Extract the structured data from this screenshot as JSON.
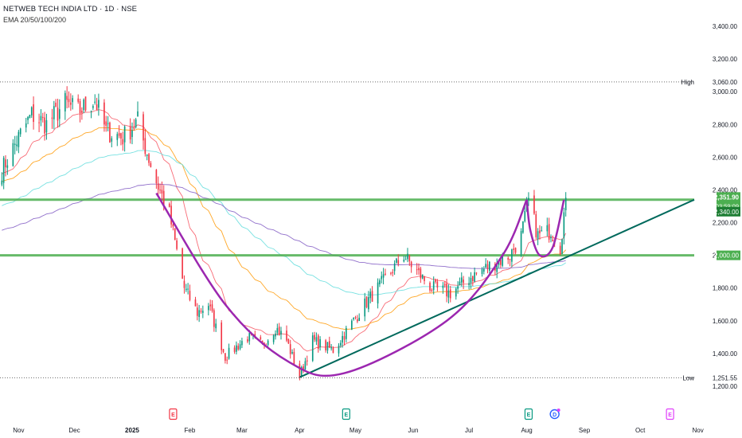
{
  "header": {
    "symbol_title": "NETWEB TECH INDIA LTD · 1D · NSE",
    "indicator_label": "EMA 20/50/100/200"
  },
  "colors": {
    "up": "#089981",
    "down": "#f23645",
    "ema20": "#f7525f",
    "ema50": "#ff9800",
    "ema100": "#5fdcdc",
    "ema200": "#7e57c2",
    "resistance_line": "#4caf50",
    "trendline": "#00695c",
    "cup_handle": "#9c27b0",
    "price_label_bg": "#4caf50"
  },
  "chart_data": {
    "type": "candlestick",
    "title": "NETWEB TECH INDIA LTD · 1D · NSE",
    "y_axis": {
      "ticks": [
        1200,
        1400,
        1600,
        1800,
        2000,
        2200,
        2400,
        2600,
        2800,
        3000,
        3200,
        3400
      ],
      "tick_labels": [
        "1,200.00",
        "1,400.00",
        "1,600.00",
        "1,800.00",
        "2,000.00",
        "2,200.00",
        "2,400.00",
        "2,600.00",
        "2,800.00",
        "3,000.00",
        "3,200.00",
        "3,400.00"
      ],
      "range": [
        1150,
        3500
      ]
    },
    "x_axis": {
      "tick_labels": [
        "Nov",
        "Dec",
        "2025",
        "Feb",
        "Mar",
        "Apr",
        "May",
        "Jun",
        "Jul",
        "Aug",
        "Sep",
        "Oct",
        "Nov"
      ],
      "range": [
        "2024-10-28",
        "2025-11-05"
      ]
    },
    "price_labels": {
      "high_label": "High",
      "high": "3,060.00",
      "low_label": "Low",
      "low": "1,251.55",
      "last": "2,351.90",
      "countdown": "03:59:09",
      "prev": "2,340.00",
      "level": "2,000.00"
    },
    "levels": [
      2340,
      2000
    ],
    "high_line": 3060,
    "low_line": 1251.55,
    "key_points": [
      {
        "date": "2024-10-29",
        "close": 2520
      },
      {
        "date": "2024-11-06",
        "close": 2700
      },
      {
        "date": "2024-11-14",
        "close": 2860
      },
      {
        "date": "2024-11-22",
        "close": 2800
      },
      {
        "date": "2024-12-02",
        "close": 2930
      },
      {
        "date": "2024-12-09",
        "close": 2880
      },
      {
        "date": "2024-12-18",
        "close": 2950
      },
      {
        "date": "2024-12-24",
        "close": 2760
      },
      {
        "date": "2025-01-02",
        "close": 2720
      },
      {
        "date": "2025-01-10",
        "close": 2820
      },
      {
        "date": "2025-01-13",
        "close": 2700
      },
      {
        "date": "2025-01-20",
        "close": 2450
      },
      {
        "date": "2025-01-27",
        "close": 2250
      },
      {
        "date": "2025-02-04",
        "close": 1800
      },
      {
        "date": "2025-02-11",
        "close": 1650
      },
      {
        "date": "2025-02-17",
        "close": 1700
      },
      {
        "date": "2025-02-26",
        "close": 1380
      },
      {
        "date": "2025-03-10",
        "close": 1500
      },
      {
        "date": "2025-03-18",
        "close": 1450
      },
      {
        "date": "2025-03-25",
        "close": 1560
      },
      {
        "date": "2025-03-31",
        "close": 1480
      },
      {
        "date": "2025-04-04",
        "close": 1350
      },
      {
        "date": "2025-04-07",
        "close": 1260
      },
      {
        "date": "2025-04-14",
        "close": 1480
      },
      {
        "date": "2025-04-25",
        "close": 1420
      },
      {
        "date": "2025-05-12",
        "close": 1700
      },
      {
        "date": "2025-05-26",
        "close": 1900
      },
      {
        "date": "2025-06-02",
        "close": 2000
      },
      {
        "date": "2025-06-09",
        "close": 1900
      },
      {
        "date": "2025-06-17",
        "close": 1800
      },
      {
        "date": "2025-06-27",
        "close": 1770
      },
      {
        "date": "2025-07-07",
        "close": 1860
      },
      {
        "date": "2025-07-17",
        "close": 1930
      },
      {
        "date": "2025-07-29",
        "close": 2000
      },
      {
        "date": "2025-08-04",
        "close": 2120
      },
      {
        "date": "2025-08-08",
        "close": 2330
      },
      {
        "date": "2025-08-13",
        "close": 2120
      },
      {
        "date": "2025-08-20",
        "close": 2150
      },
      {
        "date": "2025-08-25",
        "close": 2050
      },
      {
        "date": "2025-08-28",
        "close": 2351.9
      }
    ],
    "ema_legend": [
      "EMA 20",
      "EMA 50",
      "EMA 100",
      "EMA 200"
    ],
    "annotations": {
      "trendline": [
        {
          "date": "2025-04-07",
          "price": 1255
        },
        {
          "date": "2025-11-05",
          "price": 2340
        }
      ],
      "cup": [
        {
          "date": "2025-01-20",
          "price": 2380
        },
        {
          "date": "2025-02-26",
          "price": 1700
        },
        {
          "date": "2025-04-01",
          "price": 1350
        },
        {
          "date": "2025-05-01",
          "price": 1280
        },
        {
          "date": "2025-06-25",
          "price": 1600
        },
        {
          "date": "2025-07-25",
          "price": 2000
        },
        {
          "date": "2025-08-07",
          "price": 2340
        }
      ],
      "handle": [
        {
          "date": "2025-08-07",
          "price": 2340
        },
        {
          "date": "2025-08-09",
          "price": 2150
        },
        {
          "date": "2025-08-14",
          "price": 2000
        },
        {
          "date": "2025-08-21",
          "price": 2050
        },
        {
          "date": "2025-08-27",
          "price": 2340
        }
      ]
    },
    "event_markers": [
      {
        "date": "2025-01-29",
        "letter": "E",
        "color": "#f23645"
      },
      {
        "date": "2025-05-02",
        "letter": "E",
        "color": "#089981"
      },
      {
        "date": "2025-08-08",
        "letter": "E",
        "color": "#089981"
      },
      {
        "date": "2025-08-22",
        "letter": "D",
        "color": "#2962ff"
      },
      {
        "date": "2025-10-23",
        "letter": "E",
        "color": "#e040fb"
      }
    ],
    "grid": false,
    "legend": "top-left"
  }
}
